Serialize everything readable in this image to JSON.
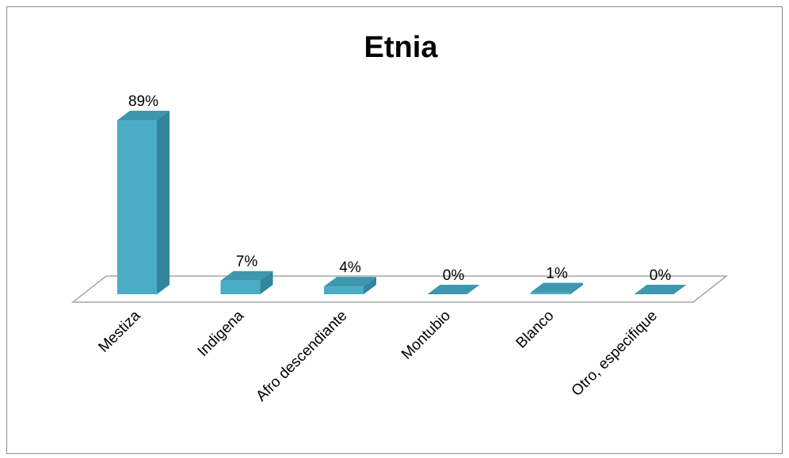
{
  "colors": {
    "bar_front": "#4bacc6",
    "bar_side": "#31859c",
    "bar_top": "#3e97ad",
    "floor_stroke": "#a6a6a6",
    "floor_fill": "#ffffff"
  },
  "chart_data": {
    "type": "bar",
    "title": "Etnia",
    "xlabel": "",
    "ylabel": "",
    "ylim": [
      0,
      100
    ],
    "categories": [
      "Mestiza",
      "Indigena",
      "Afro descendiante",
      "Montubio",
      "Blanco",
      "Otro, especifique"
    ],
    "values": [
      89,
      7,
      4,
      0,
      1,
      0
    ],
    "data_labels": [
      "89%",
      "7%",
      "4%",
      "0%",
      "1%",
      "0%"
    ],
    "grid": false,
    "legend": "none",
    "style": "3d-column"
  }
}
